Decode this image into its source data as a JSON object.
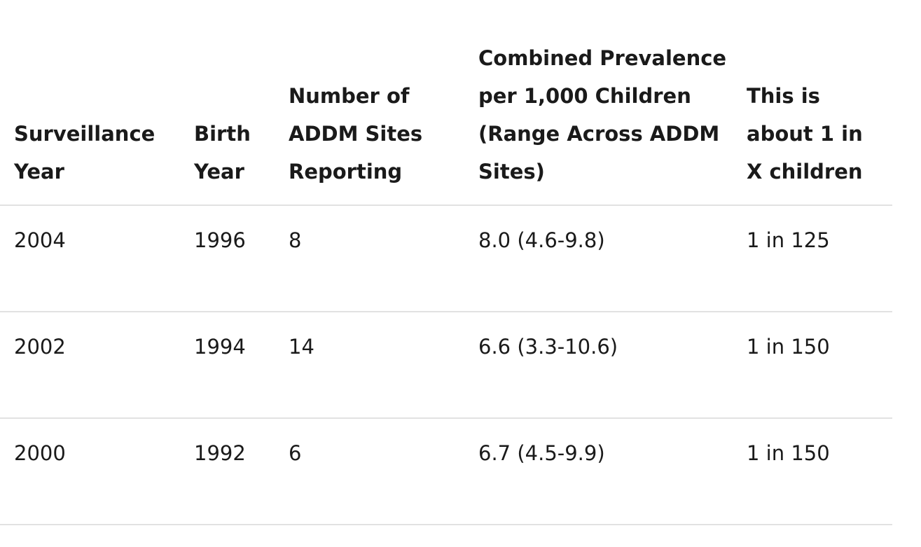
{
  "table": {
    "headers": [
      "Surveillance Year",
      "Birth Year",
      "Number of ADDM Sites Reporting",
      "Combined Prevalence per 1,000 Children (Range Across ADDM Sites)",
      "This is about 1 in X children"
    ],
    "rows": [
      [
        "2004",
        "1996",
        "8",
        "8.0 (4.6-9.8)",
        "1 in 125"
      ],
      [
        "2002",
        "1994",
        "14",
        "6.6 (3.3-10.6)",
        "1 in 150"
      ],
      [
        "2000",
        "1992",
        "6",
        "6.7 (4.5-9.9)",
        "1 in 150"
      ]
    ]
  }
}
